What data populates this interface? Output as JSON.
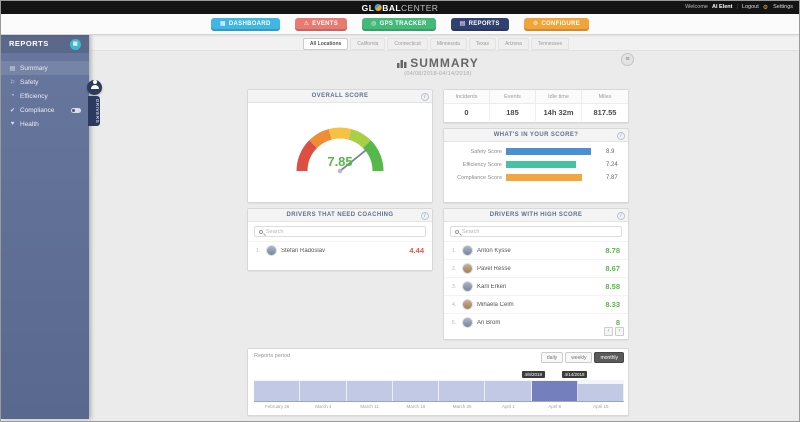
{
  "topbar": {
    "logo_prefix": "GL",
    "logo_suffix": "BAL",
    "logo_lite": "CENTER",
    "welcome_label": "Welcome",
    "username": "Al Elent",
    "separator": "|",
    "logout_label": "Logout",
    "settings_label": "Settings"
  },
  "nav": {
    "active_index": 3,
    "buttons": [
      {
        "label": "DASHBOARD",
        "icon": "▦",
        "color": "#3fb6e3"
      },
      {
        "label": "EVENTS",
        "icon": "⚠",
        "color": "#e87a72"
      },
      {
        "label": "GPS TRACKER",
        "icon": "◎",
        "color": "#43b97a"
      },
      {
        "label": "REPORTS",
        "icon": "▤",
        "color": "#2f4170"
      },
      {
        "label": "CONFIGURE",
        "icon": "⚙",
        "color": "#f2a438"
      }
    ]
  },
  "sidebar": {
    "title": "REPORTS",
    "badge_icon": "▤",
    "items": [
      {
        "icon": "▤",
        "label": "Summary"
      },
      {
        "icon": "⚐",
        "label": "Safety"
      },
      {
        "icon": "◔",
        "label": "Efficiency"
      },
      {
        "icon": "✔",
        "label": "Compliance"
      },
      {
        "icon": "♥",
        "label": "Health"
      }
    ],
    "flyout_label": "DRIVERS"
  },
  "main": {
    "tabs": [
      {
        "label": "All Locations",
        "active": true
      },
      {
        "label": "California",
        "active": false
      },
      {
        "label": "Connecticut",
        "active": false
      },
      {
        "label": "Minnesota",
        "active": false
      },
      {
        "label": "Texas",
        "active": false
      },
      {
        "label": "Arizona",
        "active": false
      },
      {
        "label": "Tennessee",
        "active": false
      }
    ],
    "title": "SUMMARY",
    "subtitle": "(04/08/2018-04/14/2018)",
    "overall": {
      "header": "OVERALL SCORE",
      "value": 7.85,
      "display": "7.85",
      "max": 10
    },
    "stats": {
      "columns": [
        {
          "label": "Incidents",
          "value": "0"
        },
        {
          "label": "Events",
          "value": "185"
        },
        {
          "label": "Idle time",
          "value": "14h 32m"
        },
        {
          "label": "Miles",
          "value": "817.55"
        }
      ]
    },
    "breakdown": {
      "header": "WHAT'S IN YOUR SCORE?",
      "rows": [
        {
          "label": "Safety Score",
          "value": 8.9,
          "display": "8.9",
          "color": "#4a90d2"
        },
        {
          "label": "Efficiency Score",
          "value": 7.24,
          "display": "7.24",
          "color": "#45c1a4"
        },
        {
          "label": "Compliance Score",
          "value": 7.87,
          "display": "7.87",
          "color": "#f2a63e"
        }
      ]
    },
    "coaching": {
      "header": "DRIVERS THAT NEED COACHING",
      "search_placeholder": "Search",
      "drivers": [
        {
          "index": "1.",
          "name": "Stefan Radoslav",
          "score": "4.44"
        }
      ]
    },
    "high_score": {
      "header": "DRIVERS WITH HIGH SCORE",
      "search_placeholder": "Search",
      "drivers": [
        {
          "index": "1.",
          "name": "Anton Kysse",
          "score": "8.78"
        },
        {
          "index": "2.",
          "name": "Pavel Resse",
          "score": "8.67"
        },
        {
          "index": "3.",
          "name": "Karli Erken",
          "score": "8.58"
        },
        {
          "index": "4.",
          "name": "Mihaela Celm",
          "score": "8.33"
        },
        {
          "index": "5.",
          "name": "Ari Brom",
          "score": "8"
        }
      ]
    },
    "period": {
      "label": "Reports period",
      "buttons": [
        "daily",
        "weekly",
        "monthly"
      ],
      "active_button": 2,
      "tooltip_start": "4/8/2018",
      "tooltip_end": "4/14/2018",
      "axis_labels": [
        "February 26",
        "March 4",
        "March 11",
        "March 18",
        "March 25",
        "April 1",
        "April 8",
        "April 15"
      ],
      "segments": [
        {
          "v": 0.95,
          "selected": false
        },
        {
          "v": 0.95,
          "selected": false
        },
        {
          "v": 0.95,
          "selected": false
        },
        {
          "v": 0.95,
          "selected": false
        },
        {
          "v": 0.95,
          "selected": false
        },
        {
          "v": 0.95,
          "selected": false
        },
        {
          "v": 0.95,
          "selected": true
        },
        {
          "v": 0.8,
          "selected": false
        }
      ]
    }
  },
  "icons": {
    "info": "i",
    "export_menu": "≡",
    "gear": "⚙",
    "prev": "‹",
    "next": "›"
  }
}
